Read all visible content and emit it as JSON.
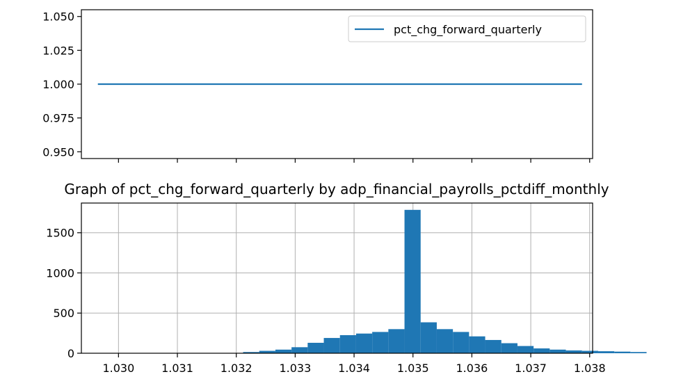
{
  "chart_data": [
    {
      "type": "line",
      "title": "",
      "xlabel": "",
      "ylabel": "",
      "ylim": [
        0.945,
        1.055
      ],
      "xlim": [
        1.02937,
        1.03805
      ],
      "yticks": [
        0.95,
        0.975,
        1.0,
        1.025,
        1.05
      ],
      "ytick_labels": [
        "0.950",
        "0.975",
        "1.000",
        "1.025",
        "1.050"
      ],
      "xticks": [
        1.03,
        1.031,
        1.032,
        1.033,
        1.034,
        1.035,
        1.036,
        1.037,
        1.038
      ],
      "x_tick_labels_shown": false,
      "grid": false,
      "legend": "top-right",
      "series": [
        {
          "name": "pct_chg_forward_quarterly",
          "color": "#1f77b4",
          "x": [
            1.02965,
            1.03787
          ],
          "values": [
            1.0,
            1.0
          ]
        }
      ]
    },
    {
      "type": "bar",
      "subtype": "histogram",
      "title": "Graph of pct_chg_forward_quarterly by adp_financial_payrolls_pctdiff_monthly",
      "xlabel": "",
      "ylabel": "",
      "xlim": [
        1.02937,
        1.03805
      ],
      "ylim": [
        0,
        1870
      ],
      "yticks": [
        0,
        500,
        1000,
        1500
      ],
      "ytick_labels": [
        "0",
        "500",
        "1000",
        "1500"
      ],
      "xticks": [
        1.03,
        1.031,
        1.032,
        1.033,
        1.034,
        1.035,
        1.036,
        1.037,
        1.038
      ],
      "xtick_labels": [
        "1.030",
        "1.031",
        "1.032",
        "1.033",
        "1.034",
        "1.035",
        "1.036",
        "1.037",
        "1.038"
      ],
      "grid": true,
      "color": "#1f77b4",
      "bin_start": 1.02965,
      "bin_width": 0.000274,
      "values": [
        3,
        3,
        3,
        3,
        3,
        3,
        3,
        3,
        3,
        15,
        30,
        45,
        75,
        130,
        190,
        225,
        245,
        265,
        300,
        1785,
        385,
        300,
        265,
        210,
        165,
        125,
        90,
        60,
        45,
        35,
        30,
        25,
        20,
        15
      ]
    }
  ]
}
